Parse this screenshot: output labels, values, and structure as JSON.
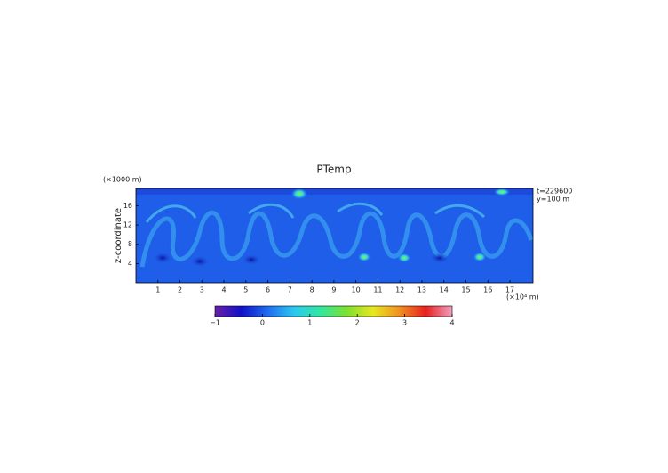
{
  "chart_data": {
    "type": "heatmap",
    "title": "PTemp",
    "y_label": "z-coordinate",
    "y_unit": "(×1000 m)",
    "x_unit": "(×10⁴ m)",
    "annotations": [
      "t=229600",
      "y=100 m"
    ],
    "xlim": [
      0,
      18.05
    ],
    "xticks": [
      1,
      2,
      3,
      4,
      5,
      6,
      7,
      8,
      9,
      10,
      11,
      12,
      13,
      14,
      15,
      16,
      17
    ],
    "ylim": [
      0,
      19.6
    ],
    "yticks": [
      4,
      8,
      12,
      16
    ],
    "colorbar": {
      "lim": [
        -1,
        4
      ],
      "ticks": [
        {
          "value": -1,
          "label": "−1"
        },
        0,
        1,
        2,
        3,
        4
      ],
      "colors": [
        "#6a1fa8",
        "#1010c8",
        "#1e6cf0",
        "#2ac8f0",
        "#30e8a0",
        "#7de030",
        "#e8e820",
        "#f09020",
        "#e82020",
        "#f0a0c0"
      ]
    }
  }
}
